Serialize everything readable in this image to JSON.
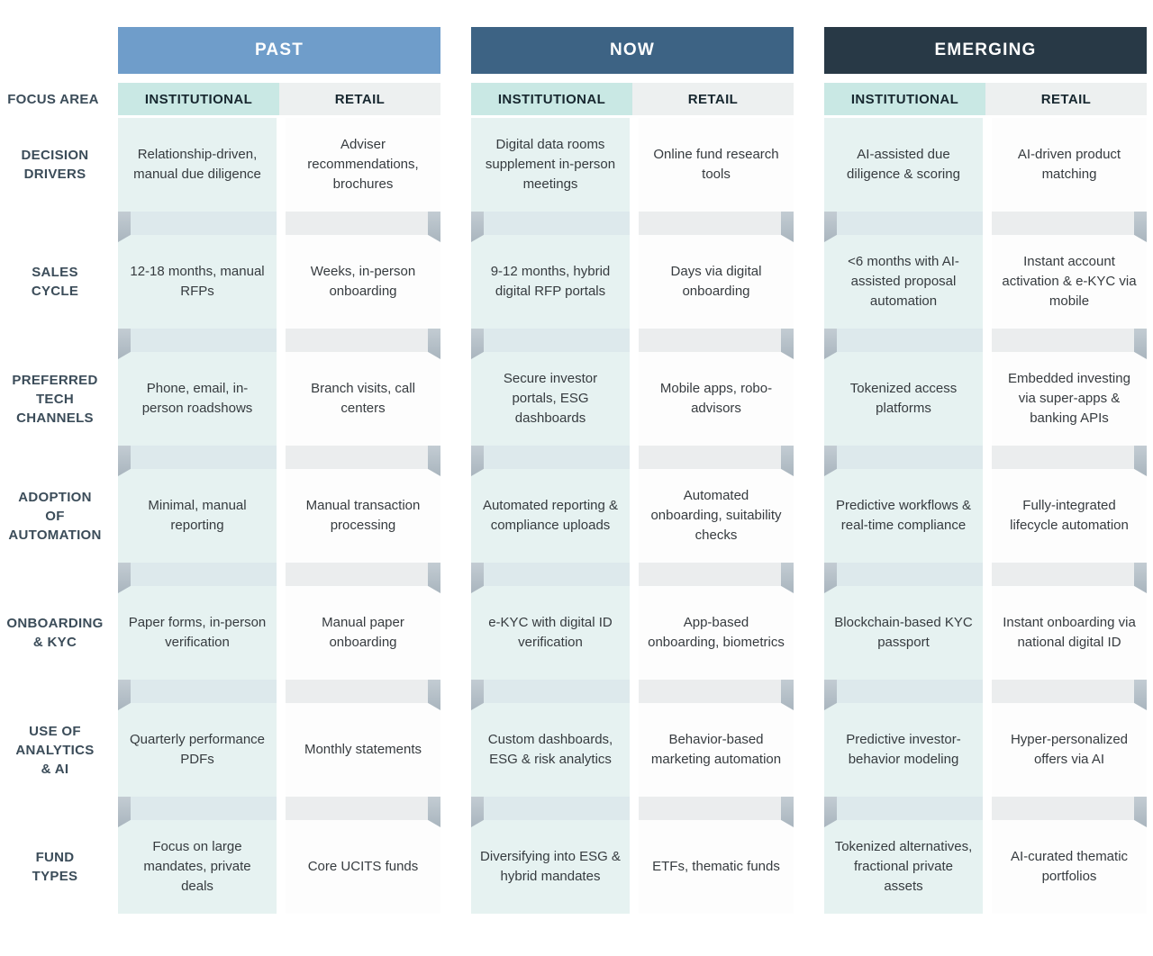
{
  "focus_area_label": "FOCUS AREA",
  "subheaders": {
    "institutional": "INSTITUTIONAL",
    "retail": "RETAIL"
  },
  "row_labels": [
    "DECISION DRIVERS",
    "SALES CYCLE",
    "PREFERRED TECH CHANNELS",
    "ADOPTION OF AUTOMATION",
    "ONBOARDING & KYC",
    "USE OF ANALYTICS & AI",
    "FUND TYPES"
  ],
  "colors": {
    "past_header": "#6f9dca",
    "now_header": "#3d6384",
    "emerging_header": "#283946",
    "institutional_subheader_bg": "#c9e8e4",
    "retail_subheader_bg": "#edf0f0",
    "institutional_cell_bg": "#e6f2f1",
    "retail_cell_bg": "#fdfdfd",
    "institutional_separator_bg": "#dde9ec",
    "retail_separator_bg": "#ebedee",
    "fold_grey": "#b4c0c8",
    "label_text": "#3b4c59"
  },
  "groups": [
    {
      "title": "PAST",
      "header_color": "#6f9dca",
      "institutional": [
        "Relationship-driven, manual due diligence",
        "12-18 months, manual RFPs",
        "Phone, email, in-person roadshows",
        "Minimal, manual reporting",
        "Paper forms, in-person verification",
        "Quarterly performance PDFs",
        "Focus on large mandates, private deals"
      ],
      "retail": [
        "Adviser recommendations, brochures",
        "Weeks, in-person onboarding",
        "Branch visits, call centers",
        "Manual transaction processing",
        "Manual paper onboarding",
        "Monthly statements",
        "Core UCITS funds"
      ]
    },
    {
      "title": "NOW",
      "header_color": "#3d6384",
      "institutional": [
        "Digital data rooms supplement in-person meetings",
        "9-12 months, hybrid digital RFP portals",
        "Secure investor portals, ESG dashboards",
        "Automated reporting & compliance uploads",
        "e-KYC with digital ID verification",
        "Custom dashboards, ESG & risk analytics",
        "Diversifying into ESG & hybrid mandates"
      ],
      "retail": [
        "Online fund research tools",
        "Days via digital onboarding",
        "Mobile apps, robo-advisors",
        "Automated onboarding, suitability checks",
        "App-based onboarding, biometrics",
        "Behavior-based marketing automation",
        "ETFs, thematic funds"
      ]
    },
    {
      "title": "EMERGING",
      "header_color": "#283946",
      "institutional": [
        "AI-assisted due diligence & scoring",
        "<6 months with AI-assisted proposal automation",
        "Tokenized access platforms",
        "Predictive workflows & real-time compliance",
        "Blockchain-based KYC passport",
        "Predictive investor-behavior modeling",
        "Tokenized alternatives, fractional private assets"
      ],
      "retail": [
        "AI-driven product matching",
        "Instant account activation & e-KYC via mobile",
        "Embedded investing via super-apps & banking APIs",
        "Fully-integrated lifecycle automation",
        "Instant onboarding via national digital ID",
        "Hyper-personalized offers via AI",
        "AI-curated thematic portfolios"
      ]
    }
  ]
}
